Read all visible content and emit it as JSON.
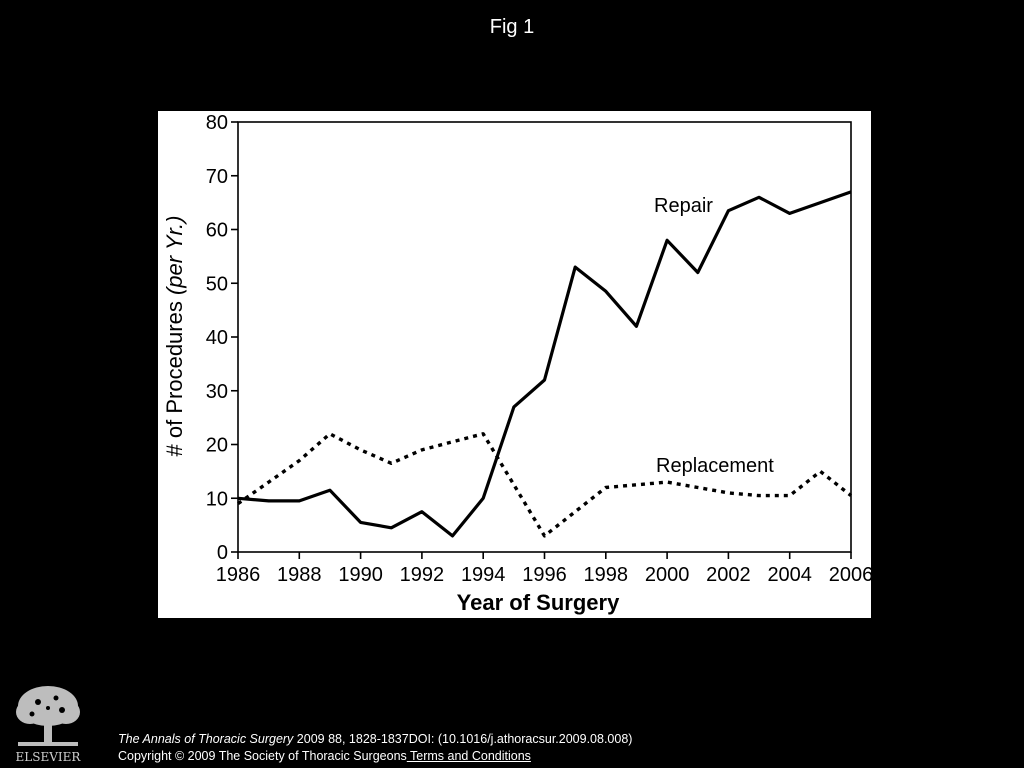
{
  "slide": {
    "title": "Fig 1"
  },
  "chart_data": {
    "type": "line",
    "title": "",
    "xlabel": "Year of Surgery",
    "ylabel_main": "# of Procedures ",
    "ylabel_italic": "(per Yr.)",
    "xlim": [
      1986,
      2006
    ],
    "ylim": [
      0,
      80
    ],
    "xticks": [
      "1986",
      "1988",
      "1990",
      "1992",
      "1994",
      "1996",
      "1998",
      "2000",
      "2002",
      "2004",
      "2006"
    ],
    "yticks": [
      "0",
      "10",
      "20",
      "30",
      "40",
      "50",
      "60",
      "70",
      "80"
    ],
    "grid": false,
    "legend": "inline labels",
    "series": [
      {
        "name": "Repair",
        "style": "solid",
        "x": [
          1986,
          1987,
          1988,
          1989,
          1990,
          1991,
          1992,
          1993,
          1994,
          1995,
          1996,
          1997,
          1998,
          1999,
          2000,
          2001,
          2002,
          2003,
          2004,
          2005,
          2006
        ],
        "y": [
          10,
          9.5,
          9.5,
          11.5,
          5.5,
          4.5,
          7.5,
          3,
          10,
          27,
          32,
          53,
          48.5,
          42,
          58,
          52,
          63.5,
          66,
          63,
          65,
          67
        ]
      },
      {
        "name": "Replacement",
        "style": "dotted",
        "x": [
          1986,
          1987,
          1988,
          1989,
          1990,
          1991,
          1992,
          1993,
          1994,
          1995,
          1996,
          1997,
          1998,
          1999,
          2000,
          2001,
          2002,
          2003,
          2004,
          2005,
          2006
        ],
        "y": [
          9,
          13,
          17,
          22,
          19,
          16.5,
          19,
          20.5,
          22,
          12.5,
          3,
          7.5,
          12,
          12.5,
          13,
          12,
          11,
          10.5,
          10.5,
          15,
          10.5
        ]
      }
    ]
  },
  "footer": {
    "logo_text": "ELSEVIER",
    "journal": "The Annals of Thoracic Surgery",
    "citation_rest": " 2009 88, 1828-1837DOI: (10.1016/j.athoracsur.2009.08.008)",
    "copyright": "Copyright © 2009 The Society of Thoracic Surgeons",
    "terms_link": " Terms and Conditions"
  },
  "colors": {
    "background": "#000000",
    "panel": "#ffffff",
    "ink": "#000000"
  }
}
